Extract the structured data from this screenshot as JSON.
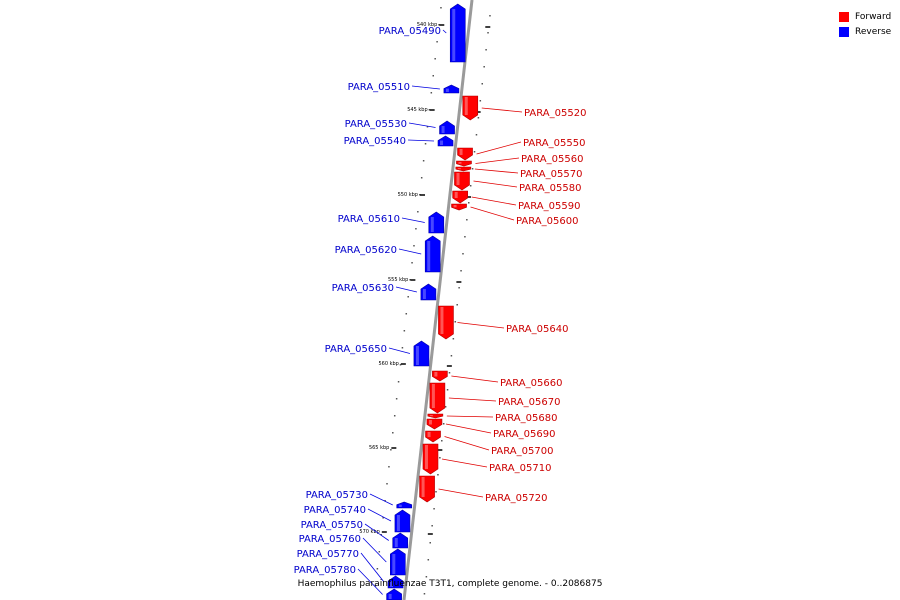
{
  "legend": {
    "forward_label": "Forward",
    "reverse_label": "Reverse",
    "forward_color": "#ff0000",
    "reverse_color": "#0000ff"
  },
  "caption": "Haemophilus parainfluenzae T3T1, complete genome. - 0..2086875",
  "ruler_labels": [
    "540 kbp",
    "545 kbp",
    "550 kbp",
    "555 kbp",
    "560 kbp",
    "565 kbp",
    "570 kbp"
  ],
  "genes": [
    {
      "name": "PARA_05490",
      "strand": "reverse"
    },
    {
      "name": "PARA_05510",
      "strand": "reverse"
    },
    {
      "name": "PARA_05520",
      "strand": "forward"
    },
    {
      "name": "PARA_05530",
      "strand": "reverse"
    },
    {
      "name": "PARA_05540",
      "strand": "reverse"
    },
    {
      "name": "PARA_05550",
      "strand": "forward"
    },
    {
      "name": "PARA_05560",
      "strand": "forward"
    },
    {
      "name": "PARA_05570",
      "strand": "forward"
    },
    {
      "name": "PARA_05580",
      "strand": "forward"
    },
    {
      "name": "PARA_05590",
      "strand": "forward"
    },
    {
      "name": "PARA_05600",
      "strand": "forward"
    },
    {
      "name": "PARA_05610",
      "strand": "reverse"
    },
    {
      "name": "PARA_05620",
      "strand": "reverse"
    },
    {
      "name": "PARA_05630",
      "strand": "reverse"
    },
    {
      "name": "PARA_05640",
      "strand": "forward"
    },
    {
      "name": "PARA_05650",
      "strand": "reverse"
    },
    {
      "name": "PARA_05660",
      "strand": "forward"
    },
    {
      "name": "PARA_05670",
      "strand": "forward"
    },
    {
      "name": "PARA_05680",
      "strand": "forward"
    },
    {
      "name": "PARA_05690",
      "strand": "forward"
    },
    {
      "name": "PARA_05700",
      "strand": "forward"
    },
    {
      "name": "PARA_05710",
      "strand": "forward"
    },
    {
      "name": "PARA_05720",
      "strand": "forward"
    },
    {
      "name": "PARA_05730",
      "strand": "reverse"
    },
    {
      "name": "PARA_05740",
      "strand": "reverse"
    },
    {
      "name": "PARA_05750",
      "strand": "reverse"
    },
    {
      "name": "PARA_05760",
      "strand": "reverse"
    },
    {
      "name": "PARA_05770",
      "strand": "reverse"
    },
    {
      "name": "PARA_05780",
      "strand": "reverse"
    }
  ]
}
